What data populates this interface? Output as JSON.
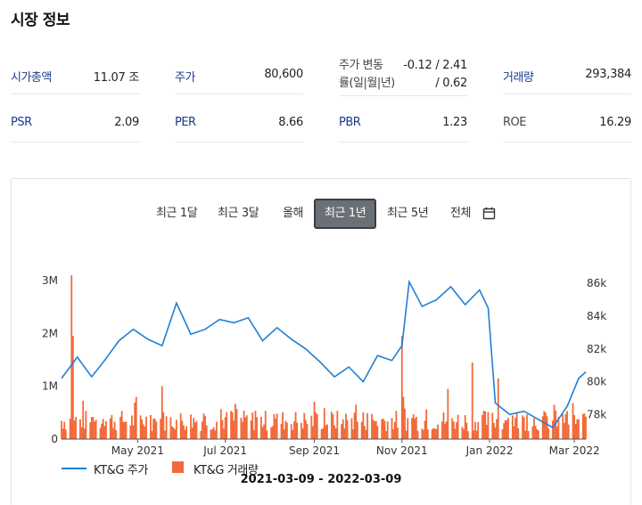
{
  "section_title": "시장 정보",
  "metrics": [
    {
      "label": "시가총액",
      "value": "11.07 조"
    },
    {
      "label": "주가",
      "value": "80,600"
    },
    {
      "label_lines": [
        "주가 변동",
        "률(일|월|년)"
      ],
      "value_lines": [
        "-0.12 / 2.41",
        "/ 0.62"
      ]
    },
    {
      "label": "거래량",
      "value": "293,384"
    },
    {
      "label": "PSR",
      "value": "2.09"
    },
    {
      "label": "PER",
      "value": "8.66"
    },
    {
      "label": "PBR",
      "value": "1.23"
    },
    {
      "label": "ROE",
      "value": "16.29"
    }
  ],
  "tabs": {
    "items": [
      "최근 1달",
      "최근 3달",
      "올해",
      "최근 1년",
      "최근 5년",
      "전체"
    ],
    "active": "최근 1년",
    "calendar_icon": "calendar-icon"
  },
  "colors": {
    "price_line": "#1f7fd6",
    "volume_bar": "#f26a3a",
    "active_tab": "#6b6f76"
  },
  "chart_data": {
    "type": "line",
    "xlabels": [
      "May 2021",
      "Jul 2021",
      "Sep 2021",
      "Nov 2021",
      "Jan 2022",
      "Mar 2022"
    ],
    "y_left_ticks": [
      "0",
      "1M",
      "2M",
      "3M"
    ],
    "y_left_range": [
      0,
      3000000
    ],
    "y_right_ticks": [
      "78k",
      "80k",
      "82k",
      "84k",
      "86k"
    ],
    "y_right_range": [
      76500,
      86500
    ],
    "x_range": [
      "2021-03-09",
      "2022-03-09"
    ],
    "series": [
      {
        "name": "KT&G 주가",
        "type": "line",
        "axis": "right",
        "x": [
          "2021-03-09",
          "2021-03-20",
          "2021-03-30",
          "2021-04-08",
          "2021-04-18",
          "2021-04-28",
          "2021-05-08",
          "2021-05-18",
          "2021-05-28",
          "2021-06-07",
          "2021-06-17",
          "2021-06-27",
          "2021-07-07",
          "2021-07-17",
          "2021-07-27",
          "2021-08-06",
          "2021-08-16",
          "2021-08-26",
          "2021-09-05",
          "2021-09-15",
          "2021-09-25",
          "2021-10-05",
          "2021-10-15",
          "2021-10-25",
          "2021-11-01",
          "2021-11-06",
          "2021-11-15",
          "2021-11-25",
          "2021-12-05",
          "2021-12-15",
          "2021-12-25",
          "2021-12-31",
          "2022-01-05",
          "2022-01-15",
          "2022-01-25",
          "2022-02-04",
          "2022-02-14",
          "2022-02-24",
          "2022-03-04",
          "2022-03-09"
        ],
        "values": [
          80200,
          81500,
          80300,
          81300,
          82500,
          83200,
          82600,
          82200,
          84800,
          82900,
          83200,
          83800,
          83600,
          83900,
          82500,
          83300,
          82600,
          82000,
          81200,
          80300,
          80900,
          80000,
          81600,
          81300,
          82200,
          86100,
          84600,
          85000,
          85800,
          84700,
          85600,
          84500,
          78700,
          78000,
          78200,
          77700,
          77200,
          78500,
          80200,
          80600
        ]
      },
      {
        "name": "KT&G 거래량",
        "type": "bar",
        "axis": "left",
        "notable_spikes": [
          {
            "x": "2021-03-16",
            "value": 3100000
          },
          {
            "x": "2021-03-17",
            "value": 1950000
          },
          {
            "x": "2021-04-30",
            "value": 800000
          },
          {
            "x": "2021-05-18",
            "value": 1000000
          },
          {
            "x": "2021-11-01",
            "value": 1950000
          },
          {
            "x": "2021-11-02",
            "value": 800000
          },
          {
            "x": "2021-12-03",
            "value": 950000
          },
          {
            "x": "2021-12-20",
            "value": 1450000
          },
          {
            "x": "2022-01-07",
            "value": 1150000
          },
          {
            "x": "2022-02-15",
            "value": 650000
          }
        ],
        "baseline_range": [
          150000,
          550000
        ]
      }
    ]
  },
  "legend": {
    "price": "KT&G 주가",
    "volume": "KT&G 거래량"
  },
  "date_range": "2021-03-09 - 2022-03-09"
}
